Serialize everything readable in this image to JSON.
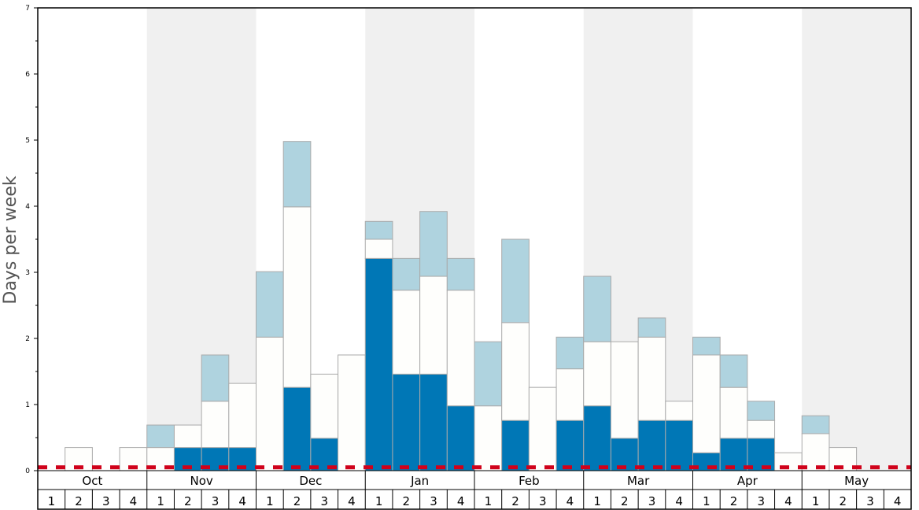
{
  "chart_data": {
    "type": "bar",
    "stacked": true,
    "title": "",
    "xlabel": "",
    "ylabel": "Days per week",
    "ylim": [
      0,
      7
    ],
    "yticks": [
      "0",
      "1",
      "2",
      "3",
      "4",
      "5",
      "6",
      "7"
    ],
    "months": [
      "Oct",
      "Nov",
      "Dec",
      "Jan",
      "Feb",
      "Mar",
      "Apr",
      "May"
    ],
    "weeks": [
      "1",
      "2",
      "3",
      "4"
    ],
    "shaded_months": [
      "Nov",
      "Jan",
      "Mar",
      "May"
    ],
    "reference_line": {
      "value": 0.05,
      "style": "dashed",
      "color": "#d0021b"
    },
    "colors": {
      "dark": "#0077b6",
      "white": "#fefefc",
      "light": "#afd3df",
      "shade": "#f0f0f0",
      "edge": "#aaaaaa"
    },
    "series": [
      {
        "name": "dark",
        "values": [
          0,
          0,
          0,
          0,
          0,
          0.35,
          0.35,
          0.35,
          0,
          1.26,
          0.49,
          0,
          3.21,
          1.46,
          1.46,
          0.98,
          0,
          0.76,
          0,
          0.76,
          0.98,
          0.49,
          0.76,
          0.76,
          0.27,
          0.49,
          0.49,
          0,
          0,
          0,
          0,
          0
        ]
      },
      {
        "name": "white",
        "values": [
          0,
          0.35,
          0,
          0.35,
          0.35,
          0.34,
          0.7,
          0.97,
          2.02,
          2.73,
          0.97,
          1.75,
          0.29,
          1.27,
          1.48,
          1.75,
          0.98,
          1.48,
          1.26,
          0.78,
          0.97,
          1.46,
          1.26,
          0.29,
          1.48,
          0.77,
          0.27,
          0.27,
          0.56,
          0.35,
          0,
          0
        ]
      },
      {
        "name": "light",
        "values": [
          0,
          0,
          0,
          0,
          0.34,
          0,
          0.7,
          0,
          0.99,
          0.99,
          0,
          0,
          0.27,
          0.48,
          0.98,
          0.48,
          0.97,
          1.26,
          0,
          0.48,
          0.99,
          0,
          0.29,
          0,
          0.27,
          0.49,
          0.29,
          0,
          0.27,
          0,
          0,
          0
        ]
      }
    ]
  }
}
